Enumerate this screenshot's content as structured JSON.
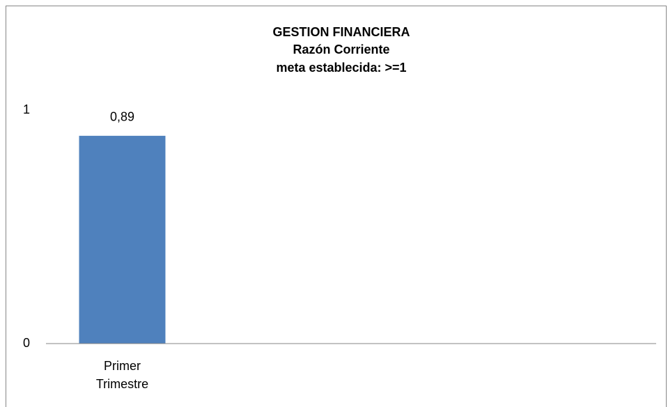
{
  "chart_data": {
    "type": "bar",
    "title": "GESTION FINANCIERA",
    "subtitle": [
      "Razón Corriente",
      "meta establecida: >=1"
    ],
    "categories": [
      "Primer Trimestre",
      null,
      null,
      null
    ],
    "values": [
      0.89,
      null,
      null,
      null
    ],
    "value_labels": [
      "0,89",
      null,
      null,
      null
    ],
    "color": "#4f81bd",
    "ylim": [
      0,
      1
    ],
    "yticks": [
      0,
      1
    ],
    "grid": false
  }
}
